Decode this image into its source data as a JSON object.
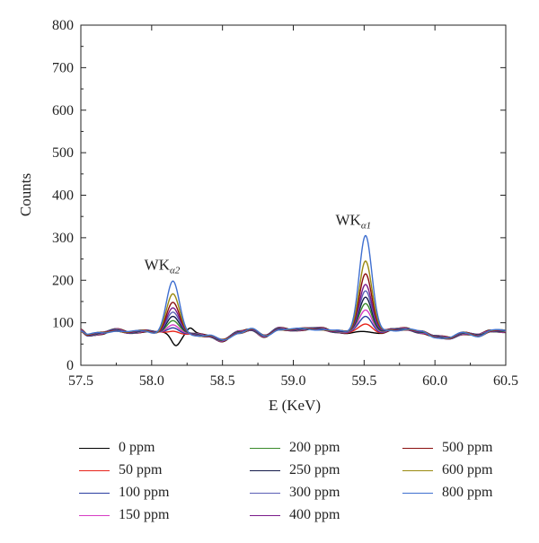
{
  "chart_data": {
    "type": "line",
    "xlabel": "E (KeV)",
    "ylabel": "Counts",
    "xlim": [
      57.5,
      60.5
    ],
    "ylim": [
      0,
      800
    ],
    "xticks": [
      "57.5",
      "58.0",
      "58.5",
      "59.0",
      "59.5",
      "60.0",
      "60.5"
    ],
    "yticks": [
      "0",
      "100",
      "200",
      "300",
      "400",
      "500",
      "600",
      "700",
      "800"
    ],
    "grid": false,
    "legend_placement": "bottom",
    "annotations": [
      {
        "text": "WK",
        "subscript": "α2",
        "x": 58.15,
        "y": 225
      },
      {
        "text": "WK",
        "subscript": "α1",
        "x": 59.5,
        "y": 330
      }
    ],
    "peaks": {
      "alpha2_center": 58.15,
      "alpha1_center": 59.51,
      "width": 0.045
    },
    "series": [
      {
        "name": "0 ppm",
        "color": "#000000",
        "peak_alpha2": 0,
        "peak_alpha1": 0
      },
      {
        "name": "50 ppm",
        "color": "#e8231a",
        "peak_alpha2": 80,
        "peak_alpha1": 97
      },
      {
        "name": "100 ppm",
        "color": "#2a3ea0",
        "peak_alpha2": 88,
        "peak_alpha1": 115
      },
      {
        "name": "150 ppm",
        "color": "#d63cc4",
        "peak_alpha2": 95,
        "peak_alpha1": 130
      },
      {
        "name": "200 ppm",
        "color": "#3a8a2a",
        "peak_alpha2": 105,
        "peak_alpha1": 145
      },
      {
        "name": "250 ppm",
        "color": "#141a4a",
        "peak_alpha2": 115,
        "peak_alpha1": 160
      },
      {
        "name": "300 ppm",
        "color": "#5b5fb5",
        "peak_alpha2": 125,
        "peak_alpha1": 175
      },
      {
        "name": "400 ppm",
        "color": "#7a1a8a",
        "peak_alpha2": 135,
        "peak_alpha1": 190
      },
      {
        "name": "500 ppm",
        "color": "#8b0f0f",
        "peak_alpha2": 148,
        "peak_alpha1": 215
      },
      {
        "name": "600 ppm",
        "color": "#9a8a10",
        "peak_alpha2": 168,
        "peak_alpha1": 245
      },
      {
        "name": "800 ppm",
        "color": "#3f6fd0",
        "peak_alpha2": 198,
        "peak_alpha1": 305
      }
    ],
    "baseline": {
      "background_points": [
        [
          57.5,
          82
        ],
        [
          57.55,
          72
        ],
        [
          57.65,
          75
        ],
        [
          57.75,
          83
        ],
        [
          57.85,
          78
        ],
        [
          57.95,
          80
        ],
        [
          58.05,
          76
        ],
        [
          58.3,
          72
        ],
        [
          58.4,
          70
        ],
        [
          58.5,
          58
        ],
        [
          58.62,
          78
        ],
        [
          58.7,
          85
        ],
        [
          58.8,
          68
        ],
        [
          58.9,
          86
        ],
        [
          59.0,
          84
        ],
        [
          59.1,
          85
        ],
        [
          59.2,
          86
        ],
        [
          59.3,
          80
        ],
        [
          59.4,
          76
        ],
        [
          59.62,
          78
        ],
        [
          59.7,
          83
        ],
        [
          59.8,
          86
        ],
        [
          59.9,
          78
        ],
        [
          60.0,
          67
        ],
        [
          60.1,
          65
        ],
        [
          60.2,
          75
        ],
        [
          60.3,
          70
        ],
        [
          60.4,
          82
        ],
        [
          60.5,
          80
        ]
      ]
    }
  },
  "legend": {
    "items": [
      {
        "label": "0 ppm",
        "color": "#000000"
      },
      {
        "label": "200 ppm",
        "color": "#3a8a2a"
      },
      {
        "label": "500 ppm",
        "color": "#8b0f0f"
      },
      {
        "label": "50 ppm",
        "color": "#e8231a"
      },
      {
        "label": "250 ppm",
        "color": "#141a4a"
      },
      {
        "label": "600 ppm",
        "color": "#9a8a10"
      },
      {
        "label": "100 ppm",
        "color": "#2a3ea0"
      },
      {
        "label": "300 ppm",
        "color": "#5b5fb5"
      },
      {
        "label": "800 ppm",
        "color": "#3f6fd0"
      },
      {
        "label": "150 ppm",
        "color": "#d63cc4"
      },
      {
        "label": "400 ppm",
        "color": "#7a1a8a"
      }
    ]
  }
}
